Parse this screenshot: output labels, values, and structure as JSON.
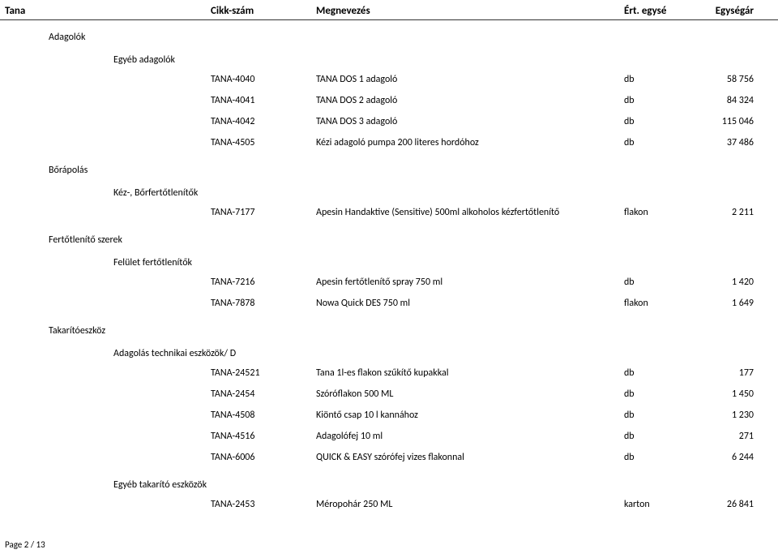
{
  "header": {
    "category": "Tana",
    "code": "Cikk-szám",
    "desc": "Megnevezés",
    "unit": "Ért. egysé",
    "price": "Egységár"
  },
  "sections": [
    {
      "level": 1,
      "title": "Adagolók",
      "subsections": [
        {
          "level": 2,
          "title": "Egyéb adagolók",
          "rows": [
            {
              "code": "TANA-4040",
              "desc": "TANA DOS 1 adagoló",
              "unit": "db",
              "price": "58 756"
            },
            {
              "code": "TANA-4041",
              "desc": "TANA DOS 2 adagoló",
              "unit": "db",
              "price": "84 324"
            },
            {
              "code": "TANA-4042",
              "desc": "TANA DOS 3 adagoló",
              "unit": "db",
              "price": "115 046"
            },
            {
              "code": "TANA-4505",
              "desc": "Kézi adagoló pumpa 200 literes hordóhoz",
              "unit": "db",
              "price": "37 486"
            }
          ]
        }
      ]
    },
    {
      "level": 1,
      "title": "Bőrápolás",
      "subsections": [
        {
          "level": 2,
          "title": "Kéz-, Bőrfertőtlenítők",
          "rows": [
            {
              "code": "TANA-7177",
              "desc": "Apesin Handaktive (Sensitive)  500ml alkoholos kézfertőtlenítő",
              "unit": "flakon",
              "price": "2 211"
            }
          ]
        }
      ]
    },
    {
      "level": 1,
      "title": "Fertőtlenítő szerek",
      "subsections": [
        {
          "level": 2,
          "title": "Felület fertőtlenítők",
          "rows": [
            {
              "code": "TANA-7216",
              "desc": "Apesin fertőtlenítő spray 750 ml",
              "unit": "db",
              "price": "1 420"
            },
            {
              "code": "TANA-7878",
              "desc": "Nowa Quick DES 750 ml",
              "unit": "flakon",
              "price": "1 649"
            }
          ]
        }
      ]
    },
    {
      "level": 1,
      "title": "Takarítóeszköz",
      "subsections": [
        {
          "level": 2,
          "title": "Adagolás technikai eszközök/ D",
          "rows": [
            {
              "code": "TANA-24521",
              "desc": "Tana 1l-es flakon szűkítő kupakkal",
              "unit": "db",
              "price": "177"
            },
            {
              "code": "TANA-2454",
              "desc": "Szóróflakon 500 ML",
              "unit": "db",
              "price": "1 450"
            },
            {
              "code": "TANA-4508",
              "desc": "Kiöntő csap 10 l kannához",
              "unit": "db",
              "price": "1 230"
            },
            {
              "code": "TANA-4516",
              "desc": "Adagolófej  10 ml",
              "unit": "db",
              "price": "271"
            },
            {
              "code": "TANA-6006",
              "desc": "QUICK & EASY szórófej vizes flakonnal",
              "unit": "db",
              "price": "6 244"
            }
          ]
        },
        {
          "level": 2,
          "title": "Egyéb takarító eszközök",
          "rows": [
            {
              "code": "TANA-2453",
              "desc": "Méropohár 250 ML",
              "unit": "karton",
              "price": "26 841"
            }
          ]
        }
      ]
    }
  ],
  "footer": "Page 2 / 13"
}
